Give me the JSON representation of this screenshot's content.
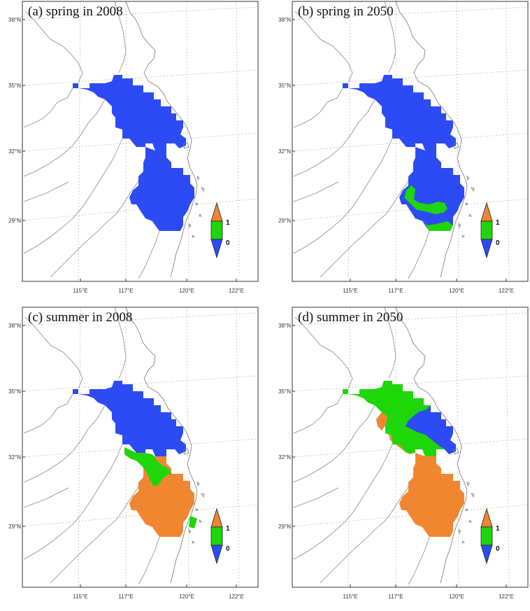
{
  "colors": {
    "category_0": "#2d4bf5",
    "category_mid": "#1ed60a",
    "category_1": "#f18631",
    "coast": "#777777"
  },
  "lat_labels": [
    "38°N",
    "35°N",
    "32°N",
    "29°N"
  ],
  "lon_labels": [
    "115°E",
    "117°E",
    "120°E",
    "122°E"
  ],
  "legend": {
    "top_label": "1",
    "bottom_label": "0"
  },
  "panels": [
    {
      "id": "a",
      "title": "(a) spring in 2008",
      "season": "spring",
      "year": "2008",
      "north_class": "0",
      "south_class": "0",
      "south_west_green": false,
      "mid_green": false,
      "north_green": false,
      "central_green": false
    },
    {
      "id": "b",
      "title": "(b) spring in 2050",
      "season": "spring",
      "year": "2050",
      "north_class": "0",
      "south_class": "0",
      "south_west_green": true,
      "mid_green": false,
      "north_green": false,
      "central_green": false
    },
    {
      "id": "c",
      "title": "(c) summer in 2008",
      "season": "summer",
      "year": "2008",
      "north_class": "0",
      "south_class": "1",
      "south_west_green": false,
      "mid_green": true,
      "north_green": false,
      "central_green": false
    },
    {
      "id": "d",
      "title": "(d) summer in 2050",
      "season": "summer",
      "year": "2050",
      "north_class": "mid",
      "south_class": "1",
      "south_west_green": false,
      "mid_green": false,
      "north_green": true,
      "central_green": true
    }
  ]
}
